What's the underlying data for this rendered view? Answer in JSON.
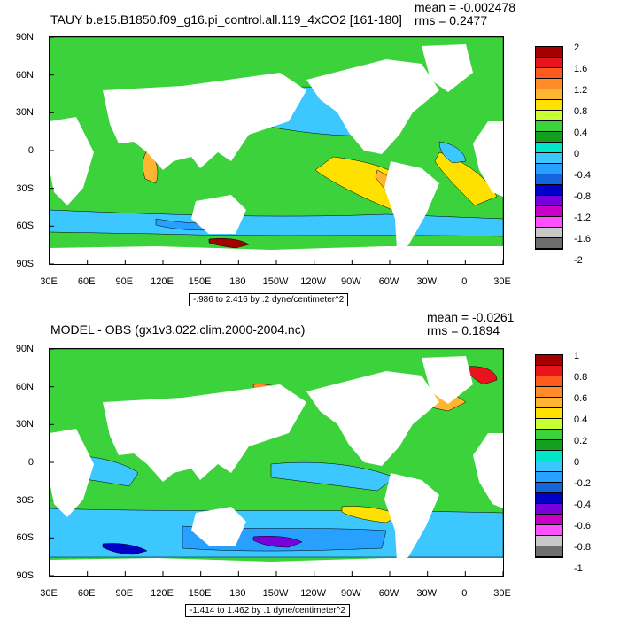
{
  "panels": [
    {
      "title": "TAUY b.e15.B1850.f09_g16.pi_control.all.119_4xCO2 [161-180]",
      "mean_text": "mean = -0.002478",
      "rms_text": "rms = 0.2477",
      "range_text": "-.986 to 2.416 by .2 dyne/centimeter^2",
      "lat_labels": [
        "90N",
        "60N",
        "30N",
        "0",
        "30S",
        "60S",
        "90S"
      ],
      "lon_labels": [
        "30E",
        "60E",
        "90E",
        "120E",
        "150E",
        "180",
        "150W",
        "120W",
        "90W",
        "60W",
        "30W",
        "0",
        "30E"
      ],
      "colorbar": {
        "labels": [
          "2",
          "1.6",
          "1.2",
          "0.8",
          "0.4",
          "0",
          "-0.4",
          "-0.8",
          "-1.2",
          "-1.6",
          "-2"
        ],
        "colors": [
          "#a50000",
          "#e8141c",
          "#ff5a1e",
          "#ff8c28",
          "#ffb432",
          "#ffe100",
          "#c8ff32",
          "#3cd23c",
          "#14a01e",
          "#00e6c8",
          "#3cc8ff",
          "#28a0ff",
          "#1464dc",
          "#0000c8",
          "#7800dc",
          "#c800c8",
          "#ff50ff",
          "#c8c8c8",
          "#6e6e6e"
        ]
      },
      "regions": [
        {
          "name": "north-pacific",
          "color": "#3cd23c"
        },
        {
          "name": "east-pacific-trough",
          "color": "#ffe100"
        },
        {
          "name": "south-atlantic-high",
          "color": "#ffb432"
        },
        {
          "name": "southern-ocean-band",
          "color": "#3cc8ff"
        },
        {
          "name": "antarctic-margin",
          "color": "#a50000"
        }
      ]
    },
    {
      "title": "MODEL - OBS (gx1v3.022.clim.2000-2004.nc)",
      "mean_text": "mean = -0.0261",
      "rms_text": "rms = 0.1894",
      "range_text": "-1.414 to 1.462 by .1 dyne/centimeter^2",
      "lat_labels": [
        "90N",
        "60N",
        "30N",
        "0",
        "30S",
        "60S",
        "90S"
      ],
      "lon_labels": [
        "30E",
        "60E",
        "90E",
        "120E",
        "150E",
        "180",
        "150W",
        "120W",
        "90W",
        "60W",
        "30W",
        "0",
        "30E"
      ],
      "colorbar": {
        "labels": [
          "1",
          "0.8",
          "0.6",
          "0.4",
          "0.2",
          "0",
          "-0.2",
          "-0.4",
          "-0.6",
          "-0.8",
          "-1"
        ],
        "colors": [
          "#a50000",
          "#e8141c",
          "#ff5a1e",
          "#ff8c28",
          "#ffb432",
          "#ffe100",
          "#c8ff32",
          "#3cd23c",
          "#14a01e",
          "#00e6c8",
          "#3cc8ff",
          "#28a0ff",
          "#1464dc",
          "#0000c8",
          "#7800dc",
          "#c800c8",
          "#ff50ff",
          "#c8c8c8",
          "#6e6e6e"
        ]
      },
      "regions": [
        {
          "name": "north-pacific",
          "color": "#ffb432"
        },
        {
          "name": "east-pacific-trough",
          "color": "#ffe100"
        },
        {
          "name": "south-atlantic-high",
          "color": "#3cd23c"
        },
        {
          "name": "southern-ocean-band",
          "color": "#28a0ff"
        },
        {
          "name": "antarctic-margin",
          "color": "#0000c8"
        }
      ]
    }
  ]
}
